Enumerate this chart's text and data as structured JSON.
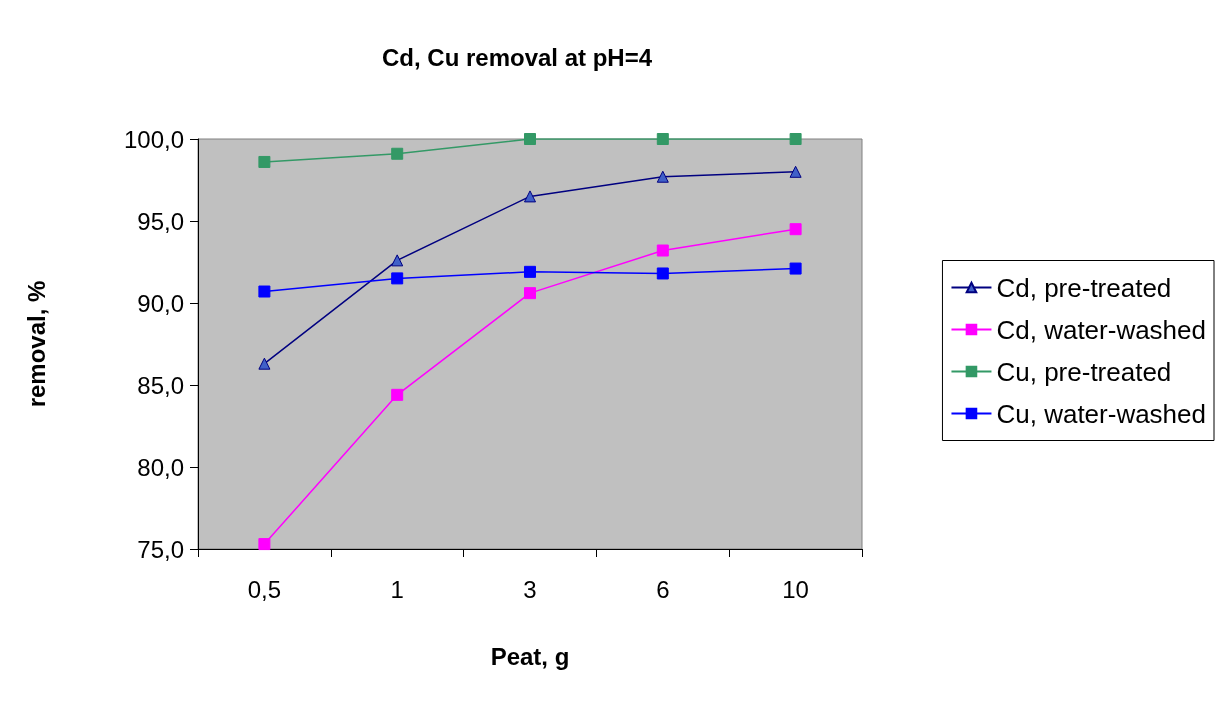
{
  "chart_data": {
    "type": "line",
    "title": "Cd, Cu removal at pH=4",
    "xlabel": "Peat, g",
    "ylabel": "removal, %",
    "categories": [
      "0,5",
      "1",
      "3",
      "6",
      "10"
    ],
    "series": [
      {
        "name": "Cd, pre-treated",
        "color": "#000080",
        "marker": "triangle",
        "values": [
          86.3,
          92.6,
          96.5,
          97.7,
          98.0
        ]
      },
      {
        "name": "Cd, water-washed",
        "color": "#ff00ff",
        "marker": "square",
        "values": [
          75.3,
          84.4,
          90.6,
          93.2,
          94.5
        ]
      },
      {
        "name": "Cu, pre-treated",
        "color": "#339966",
        "marker": "square",
        "values": [
          98.6,
          99.1,
          100.0,
          100.0,
          100.0
        ]
      },
      {
        "name": "Cu, water-washed",
        "color": "#0000ff",
        "marker": "square",
        "values": [
          90.7,
          91.5,
          91.9,
          91.8,
          92.1
        ]
      }
    ],
    "ylim": [
      75,
      100
    ],
    "yticks": [
      {
        "value": 75,
        "label": "75,0"
      },
      {
        "value": 80,
        "label": "80,0"
      },
      {
        "value": 85,
        "label": "85,0"
      },
      {
        "value": 90,
        "label": "90,0"
      },
      {
        "value": 95,
        "label": "95,0"
      },
      {
        "value": 100,
        "label": "100,0"
      }
    ],
    "grid": false,
    "legend": "right",
    "line_style": "solid"
  }
}
